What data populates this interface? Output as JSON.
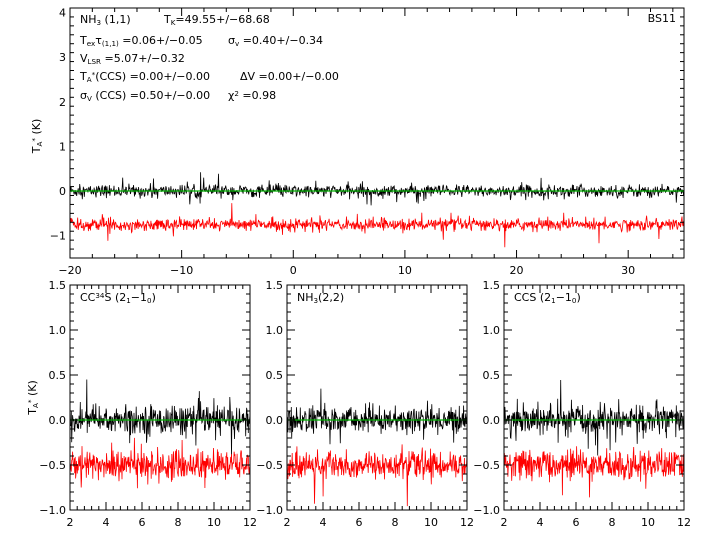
{
  "chart_data": [
    {
      "type": "line",
      "panel": "main",
      "label_id": "BS11",
      "ylabel": "T_A* (K)",
      "xlim": [
        -20,
        35
      ],
      "ylim": [
        -1.5,
        4.1
      ],
      "xticks": [
        -20,
        -10,
        0,
        10,
        20,
        30
      ],
      "xtick_labels": [
        "−20",
        "−10",
        "0",
        "10",
        "20",
        "30"
      ],
      "yticks": [
        -1,
        0,
        1,
        2,
        3,
        4
      ],
      "ytick_labels": [
        "−1",
        "0",
        "1",
        "2",
        "3",
        "4"
      ],
      "annotations": [
        {
          "main": "NH",
          "sub": "3",
          "rest": " (1,1)"
        },
        {
          "main": "T",
          "sub": "K",
          "rest": "=49.55+/−68.68"
        },
        {
          "main": "T",
          "sub": "ex",
          "mid": "τ",
          "sub2": "(1,1)",
          "rest": " =0.06+/−0.05"
        },
        {
          "main": "σ",
          "sub": "v",
          "rest": " =0.40+/−0.34"
        },
        {
          "main": "V",
          "sub": "LSR",
          "rest": " =5.07+/−0.32"
        },
        {
          "main": "T",
          "sub": "A",
          "sup": "*",
          "rest": "(CCS)  =0.00+/−0.00"
        },
        {
          "main": "ΔV",
          "rest": " =0.00+/−0.00"
        },
        {
          "main": "σ",
          "sub": "V",
          "rest": " (CCS)  =0.50+/−0.00"
        },
        {
          "main": "χ",
          "sup": "2",
          "rest": " =0.98"
        }
      ],
      "series": [
        {
          "role": "observed spectrum",
          "color": "#000000",
          "baseline": 0.0,
          "noise_amplitude": 0.1
        },
        {
          "role": "residual (offset)",
          "color": "#ff0000",
          "baseline": -0.75,
          "noise_amplitude": 0.1
        },
        {
          "role": "model fit",
          "color": "#00b000",
          "value": 0.0
        }
      ]
    },
    {
      "type": "line",
      "panel": "sub1",
      "title_parts": {
        "main": "CC",
        "sup": "34",
        "rest": "S (2",
        "sub": "1",
        "rest2": "−1",
        "sub2": "0",
        "rest3": ")"
      },
      "ylabel": "T_A* (K)",
      "xlim": [
        2,
        12
      ],
      "ylim": [
        -1.0,
        1.5
      ],
      "xticks": [
        2,
        4,
        6,
        8,
        10,
        12
      ],
      "xtick_labels": [
        "2",
        "4",
        "6",
        "8",
        "10",
        "12"
      ],
      "yticks": [
        -1.0,
        -0.5,
        0.0,
        0.5,
        1.0,
        1.5
      ],
      "ytick_labels": [
        "−1.0",
        "−0.5",
        "0.0",
        "0.5",
        "1.0",
        "1.5"
      ],
      "series": [
        {
          "role": "observed spectrum",
          "color": "#000000",
          "baseline": 0.0,
          "noise_amplitude": 0.12
        },
        {
          "role": "residual (offset)",
          "color": "#ff0000",
          "baseline": -0.5,
          "noise_amplitude": 0.12
        },
        {
          "role": "model fit",
          "color": "#00b000",
          "value": 0.0
        }
      ]
    },
    {
      "type": "line",
      "panel": "sub2",
      "title_parts": {
        "main": "NH",
        "sub": "3",
        "rest": "(2,2)"
      },
      "xlim": [
        2,
        12
      ],
      "ylim": [
        -1.0,
        1.5
      ],
      "xticks": [
        2,
        4,
        6,
        8,
        10,
        12
      ],
      "xtick_labels": [
        "2",
        "4",
        "6",
        "8",
        "10",
        "12"
      ],
      "yticks": [
        -1.0,
        -0.5,
        0.0,
        0.5,
        1.0,
        1.5
      ],
      "ytick_labels": [
        "−1.0",
        "−0.5",
        "0.0",
        "0.5",
        "1.0",
        "1.5"
      ],
      "series": [
        {
          "role": "observed spectrum",
          "color": "#000000",
          "baseline": 0.0,
          "noise_amplitude": 0.11
        },
        {
          "role": "residual (offset)",
          "color": "#ff0000",
          "baseline": -0.5,
          "noise_amplitude": 0.11
        },
        {
          "role": "model fit",
          "color": "#00b000",
          "value": 0.0
        }
      ]
    },
    {
      "type": "line",
      "panel": "sub3",
      "title_parts": {
        "main": "CCS (2",
        "sub": "1",
        "rest": "−1",
        "sub2": "0",
        "rest2": ")"
      },
      "xlim": [
        2,
        12
      ],
      "ylim": [
        -1.0,
        1.5
      ],
      "xticks": [
        2,
        4,
        6,
        8,
        10,
        12
      ],
      "xtick_labels": [
        "2",
        "4",
        "6",
        "8",
        "10",
        "12"
      ],
      "yticks": [
        -1.0,
        -0.5,
        0.0,
        0.5,
        1.0,
        1.5
      ],
      "ytick_labels": [
        "−1.0",
        "−0.5",
        "0.0",
        "0.5",
        "1.0",
        "1.5"
      ],
      "series": [
        {
          "role": "observed spectrum",
          "color": "#000000",
          "baseline": 0.0,
          "noise_amplitude": 0.12
        },
        {
          "role": "residual (offset)",
          "color": "#ff0000",
          "baseline": -0.5,
          "noise_amplitude": 0.12
        },
        {
          "role": "model fit",
          "color": "#00b000",
          "value": 0.0
        }
      ]
    }
  ]
}
